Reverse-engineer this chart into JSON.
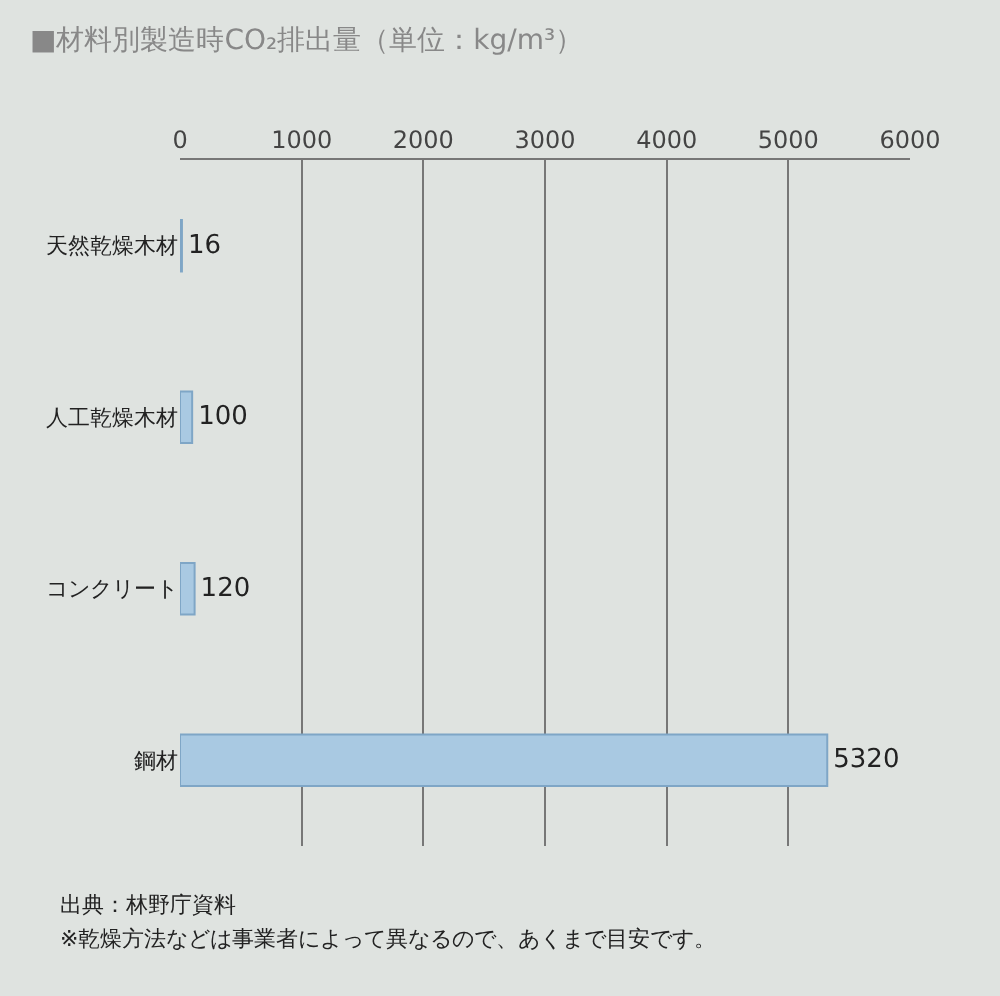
{
  "chart_data": {
    "type": "bar",
    "orientation": "horizontal",
    "title": "■材料別製造時CO₂排出量（単位：kg/m³）",
    "categories": [
      "天然乾燥木材",
      "人工乾燥木材",
      "コンクリート",
      "鋼材"
    ],
    "values": [
      16,
      100,
      120,
      5320
    ],
    "color": "#a9c9e2",
    "xlim": [
      0,
      6000
    ],
    "xticks": [
      0,
      1000,
      2000,
      3000,
      4000,
      5000,
      6000
    ],
    "grid": "x",
    "data_labels": true,
    "annotations": [
      "出典：林野庁資料",
      "※乾燥方法などは事業者によって異なるので、あくまで目安です。"
    ]
  }
}
